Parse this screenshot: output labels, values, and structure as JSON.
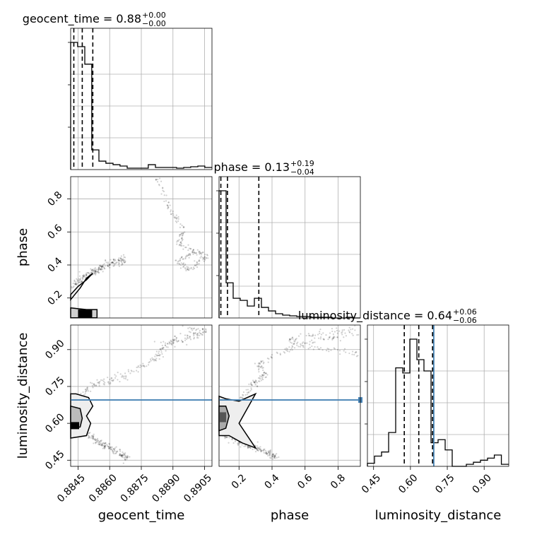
{
  "chart_data": {
    "type": "corner",
    "parameters": [
      "geocent_time",
      "phase",
      "luminosity_distance"
    ],
    "titles": [
      {
        "param": "geocent_time",
        "label": "geocent_time = 0.88",
        "sup": "+0.00",
        "sub": "−0.00"
      },
      {
        "param": "phase",
        "label": "phase = 0.13",
        "sup": "+0.19",
        "sub": "−0.04"
      },
      {
        "param": "luminosity_distance",
        "label": "luminosity_distance = 0.64",
        "sup": "+0.06",
        "sub": "−0.06"
      }
    ],
    "axis_labels": {
      "x": [
        "geocent_time",
        "phase",
        "luminosity_distance"
      ],
      "y": [
        "phase",
        "luminosity_distance"
      ]
    },
    "ranges": {
      "geocent_time": [
        0.88415,
        0.89085
      ],
      "phase": [
        0.079,
        0.935
      ],
      "luminosity_distance": [
        0.425,
        1.0
      ]
    },
    "ticks": {
      "geocent_time": [
        0.8845,
        0.886,
        0.8875,
        0.889,
        0.8905
      ],
      "phase": [
        0.2,
        0.4,
        0.6,
        0.8
      ],
      "luminosity_distance": [
        0.45,
        0.6,
        0.75,
        0.9
      ]
    },
    "tick_labels": {
      "geocent_time": [
        "0.8845",
        "0.8860",
        "0.8875",
        "0.8890",
        "0.8905"
      ],
      "phase": [
        "0.2",
        "0.4",
        "0.6",
        "0.8"
      ],
      "luminosity_distance": [
        "0.45",
        "0.60",
        "0.75",
        "0.90"
      ]
    },
    "histograms": {
      "geocent_time": {
        "edges": [
          0.88415,
          0.88448,
          0.88482,
          0.88515,
          0.88549,
          0.88582,
          0.88616,
          0.88649,
          0.88683,
          0.88716,
          0.8875,
          0.88783,
          0.88817,
          0.8885,
          0.88884,
          0.88917,
          0.88951,
          0.88984,
          0.89018,
          0.89051,
          0.89085
        ],
        "counts": [
          181,
          175,
          150,
          28,
          12,
          9,
          7,
          5,
          2,
          2,
          2,
          7,
          3,
          3,
          3,
          2,
          3,
          4,
          5,
          3
        ],
        "quantiles": [
          0.8843,
          0.8847,
          0.8852
        ]
      },
      "phase": {
        "edges": [
          0.079,
          0.1218,
          0.1646,
          0.2074,
          0.2502,
          0.293,
          0.3358,
          0.3786,
          0.4214,
          0.4642,
          0.507,
          0.5498,
          0.5926,
          0.6354,
          0.6782,
          0.721,
          0.7638,
          0.8066,
          0.8494,
          0.8922,
          0.935
        ],
        "counts": [
          181,
          50,
          28,
          25,
          17,
          28,
          15,
          10,
          6,
          4,
          3,
          2,
          2,
          1,
          1,
          1,
          0,
          0,
          1,
          0
        ],
        "quantiles": [
          0.09,
          0.13,
          0.32
        ]
      },
      "luminosity_distance": {
        "edges": [
          0.425,
          0.4538,
          0.4825,
          0.5113,
          0.54,
          0.5688,
          0.5975,
          0.6263,
          0.655,
          0.6838,
          0.7125,
          0.7413,
          0.77,
          0.7988,
          0.8275,
          0.8563,
          0.885,
          0.9138,
          0.9413,
          0.97,
          1.0
        ],
        "counts": [
          3,
          10,
          14,
          33,
          96,
          91,
          124,
          104,
          93,
          23,
          26,
          16,
          0,
          0,
          2,
          4,
          6,
          8,
          11,
          2
        ],
        "quantiles": [
          0.575,
          0.634,
          0.69
        ]
      }
    },
    "truths": {
      "luminosity_distance": 0.695
    },
    "truth_color": "#4682b4",
    "grid": true
  }
}
